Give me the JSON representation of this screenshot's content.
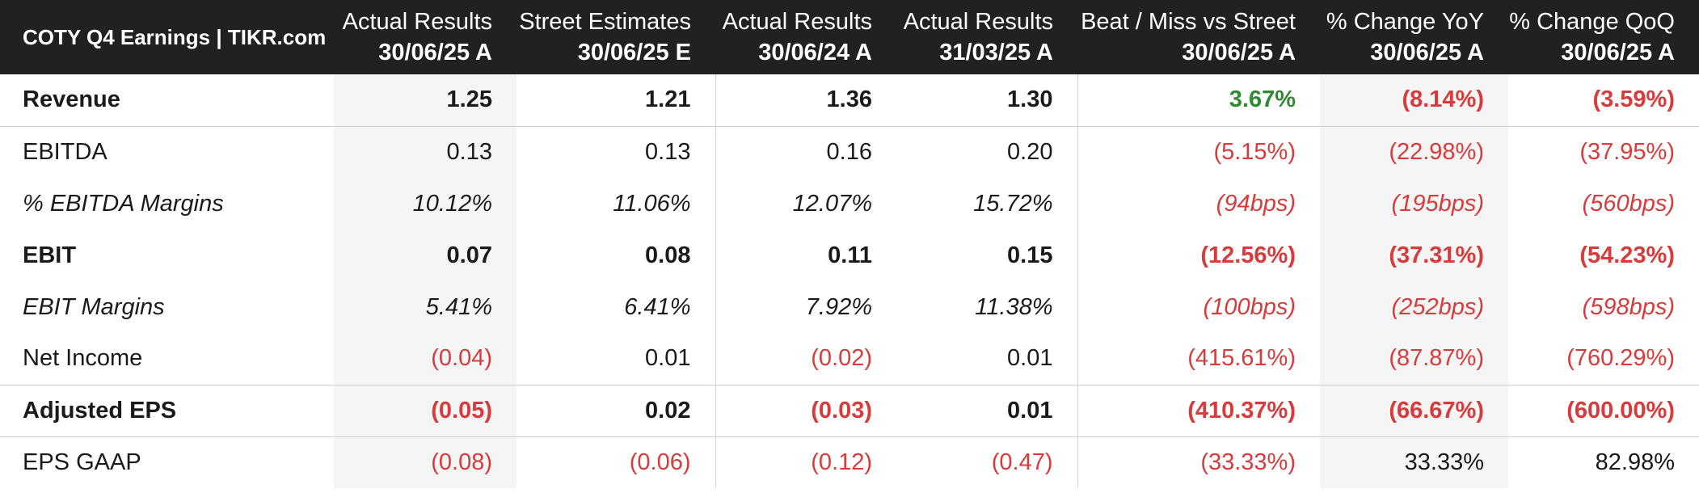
{
  "title": "COTY Q4 Earnings | TIKR.com",
  "columns": [
    {
      "line1": "Actual Results",
      "line2": "30/06/25 A"
    },
    {
      "line1": "Street Estimates",
      "line2": "30/06/25 E"
    },
    {
      "line1": "Actual Results",
      "line2": "30/06/24 A"
    },
    {
      "line1": "Actual Results",
      "line2": "31/03/25 A"
    },
    {
      "line1": "Beat / Miss vs Street",
      "line2": "30/06/25 A"
    },
    {
      "line1": "% Change YoY",
      "line2": "30/06/25 A"
    },
    {
      "line1": "% Change QoQ",
      "line2": "30/06/25 A"
    }
  ],
  "rows": [
    {
      "label": "Revenue",
      "style": "bold",
      "group_start": false,
      "values": [
        "1.25",
        "1.21",
        "1.36",
        "1.30",
        "3.67%",
        "(8.14%)",
        "(3.59%)"
      ],
      "tones": [
        "neu",
        "neu",
        "neu",
        "neu",
        "pos",
        "neg",
        "neg"
      ]
    },
    {
      "label": "EBITDA",
      "style": "normal",
      "group_start": true,
      "values": [
        "0.13",
        "0.13",
        "0.16",
        "0.20",
        "(5.15%)",
        "(22.98%)",
        "(37.95%)"
      ],
      "tones": [
        "neu",
        "neu",
        "neu",
        "neu",
        "neg",
        "neg",
        "neg"
      ]
    },
    {
      "label": "% EBITDA Margins",
      "style": "italic",
      "group_start": false,
      "values": [
        "10.12%",
        "11.06%",
        "12.07%",
        "15.72%",
        "(94bps)",
        "(195bps)",
        "(560bps)"
      ],
      "tones": [
        "neu",
        "neu",
        "neu",
        "neu",
        "neg",
        "neg",
        "neg"
      ]
    },
    {
      "label": "EBIT",
      "style": "bold",
      "group_start": false,
      "values": [
        "0.07",
        "0.08",
        "0.11",
        "0.15",
        "(12.56%)",
        "(37.31%)",
        "(54.23%)"
      ],
      "tones": [
        "neu",
        "neu",
        "neu",
        "neu",
        "neg",
        "neg",
        "neg"
      ]
    },
    {
      "label": "EBIT Margins",
      "style": "italic",
      "group_start": false,
      "values": [
        "5.41%",
        "6.41%",
        "7.92%",
        "11.38%",
        "(100bps)",
        "(252bps)",
        "(598bps)"
      ],
      "tones": [
        "neu",
        "neu",
        "neu",
        "neu",
        "neg",
        "neg",
        "neg"
      ]
    },
    {
      "label": "Net Income",
      "style": "normal",
      "group_start": false,
      "values": [
        "(0.04)",
        "0.01",
        "(0.02)",
        "0.01",
        "(415.61%)",
        "(87.87%)",
        "(760.29%)"
      ],
      "tones": [
        "neg",
        "neu",
        "neg",
        "neu",
        "neg",
        "neg",
        "neg"
      ]
    },
    {
      "label": "Adjusted EPS",
      "style": "bold",
      "group_start": true,
      "values": [
        "(0.05)",
        "0.02",
        "(0.03)",
        "0.01",
        "(410.37%)",
        "(66.67%)",
        "(600.00%)"
      ],
      "tones": [
        "neg",
        "neu",
        "neg",
        "neu",
        "neg",
        "neg",
        "neg"
      ]
    },
    {
      "label": "EPS GAAP",
      "style": "normal",
      "group_start": true,
      "values": [
        "(0.08)",
        "(0.06)",
        "(0.12)",
        "(0.47)",
        "(33.33%)",
        "33.33%",
        "82.98%"
      ],
      "tones": [
        "neg",
        "neg",
        "neg",
        "neg",
        "neg",
        "neu",
        "neu"
      ]
    }
  ]
}
